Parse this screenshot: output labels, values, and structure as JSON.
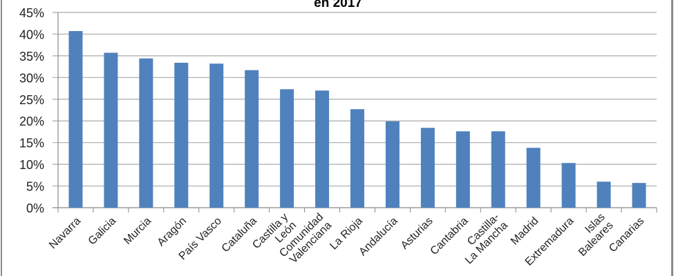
{
  "chart_data": {
    "type": "bar",
    "title": "en 2017",
    "xlabel": "",
    "ylabel": "",
    "categories": [
      "Navarra",
      "Galicia",
      "Murcia",
      "Aragón",
      "País Vasco",
      "Cataluña",
      "Castilla y León",
      "Comunidad Valenciana",
      "La Rioja",
      "Andalucía",
      "Asturias",
      "Cantabria",
      "Castilla-La Mancha",
      "Madrid",
      "Extremadura",
      "Islas Baleares",
      "Canarias"
    ],
    "values": [
      40.7,
      35.7,
      34.4,
      33.4,
      33.2,
      31.7,
      27.3,
      27.0,
      22.7,
      19.9,
      18.4,
      17.6,
      17.6,
      13.8,
      10.3,
      6.0,
      5.7
    ],
    "ylim": [
      0,
      45
    ],
    "yticks": [
      "0%",
      "5%",
      "10%",
      "15%",
      "20%",
      "25%",
      "30%",
      "35%",
      "40%",
      "45%"
    ],
    "grid": true,
    "legend": "none",
    "bar_color": "#4f81bd"
  }
}
